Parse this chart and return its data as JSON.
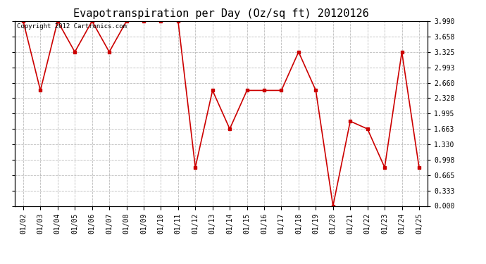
{
  "title": "Evapotranspiration per Day (Oz/sq ft) 20120126",
  "copyright_text": "Copyright 2012 Cartronics.com",
  "dates": [
    "01/02",
    "01/03",
    "01/04",
    "01/05",
    "01/06",
    "01/07",
    "01/08",
    "01/09",
    "01/10",
    "01/11",
    "01/12",
    "01/13",
    "01/14",
    "01/15",
    "01/16",
    "01/17",
    "01/18",
    "01/19",
    "01/20",
    "01/21",
    "01/22",
    "01/23",
    "01/24",
    "01/25"
  ],
  "values": [
    3.99,
    2.494,
    3.99,
    3.325,
    3.99,
    3.325,
    3.99,
    3.99,
    3.99,
    3.99,
    0.831,
    2.494,
    1.663,
    2.494,
    2.494,
    2.494,
    3.325,
    2.494,
    0.0,
    1.829,
    1.663,
    0.831,
    3.325,
    0.831
  ],
  "line_color": "#cc0000",
  "marker": "s",
  "marker_size": 2.5,
  "ylim": [
    0.0,
    3.99
  ],
  "yticks": [
    0.0,
    0.333,
    0.665,
    0.998,
    1.33,
    1.663,
    1.995,
    2.328,
    2.66,
    2.993,
    3.325,
    3.658,
    3.99
  ],
  "ytick_labels": [
    "0.000",
    "0.333",
    "0.665",
    "0.998",
    "1.330",
    "1.663",
    "1.995",
    "2.328",
    "2.660",
    "2.993",
    "3.325",
    "3.658",
    "3.990"
  ],
  "background_color": "#ffffff",
  "grid_color": "#bbbbbb",
  "title_fontsize": 11,
  "tick_fontsize": 7,
  "copyright_fontsize": 6.5
}
